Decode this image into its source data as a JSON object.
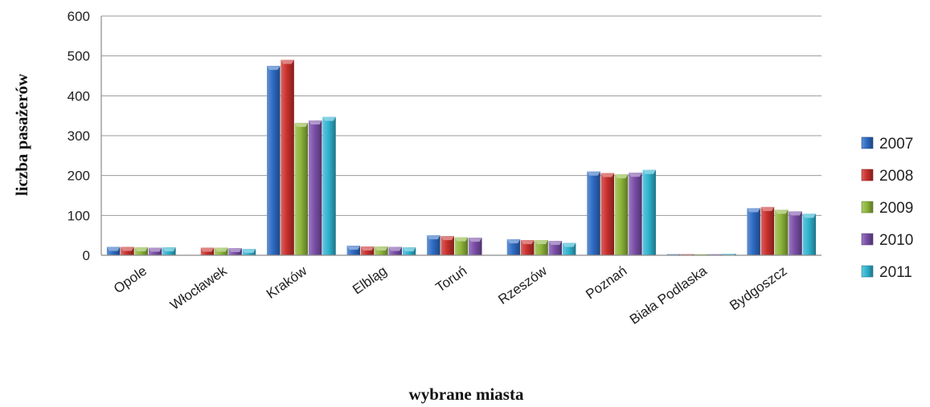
{
  "chart_data": {
    "type": "bar",
    "title": "",
    "xlabel": "wybrane miasta",
    "ylabel": "liczba pasażerów",
    "ylim": [
      0,
      600
    ],
    "yticks": [
      0,
      100,
      200,
      300,
      400,
      500,
      600
    ],
    "grid": true,
    "legend_position": "right",
    "categories": [
      "Opole",
      "Włocławek",
      "Kraków",
      "Elbląg",
      "Toruń",
      "Rzeszów",
      "Poznań",
      "Biała Podlaska",
      "Bydgoszcz"
    ],
    "series": [
      {
        "name": "2007",
        "color": "#2e6bc4",
        "values": [
          21,
          0,
          475,
          24,
          50,
          40,
          210,
          3,
          118
        ]
      },
      {
        "name": "2008",
        "color": "#c9302c",
        "values": [
          21,
          19,
          490,
          22,
          48,
          38,
          206,
          3,
          121
        ]
      },
      {
        "name": "2009",
        "color": "#8db63a",
        "values": [
          20,
          19,
          332,
          22,
          45,
          38,
          203,
          3,
          114
        ]
      },
      {
        "name": "2010",
        "color": "#7a4ea8",
        "values": [
          19,
          18,
          338,
          21,
          44,
          36,
          207,
          3,
          110
        ]
      },
      {
        "name": "2011",
        "color": "#2fb3cf",
        "values": [
          20,
          16,
          347,
          20,
          0,
          31,
          214,
          4,
          104
        ]
      }
    ]
  }
}
